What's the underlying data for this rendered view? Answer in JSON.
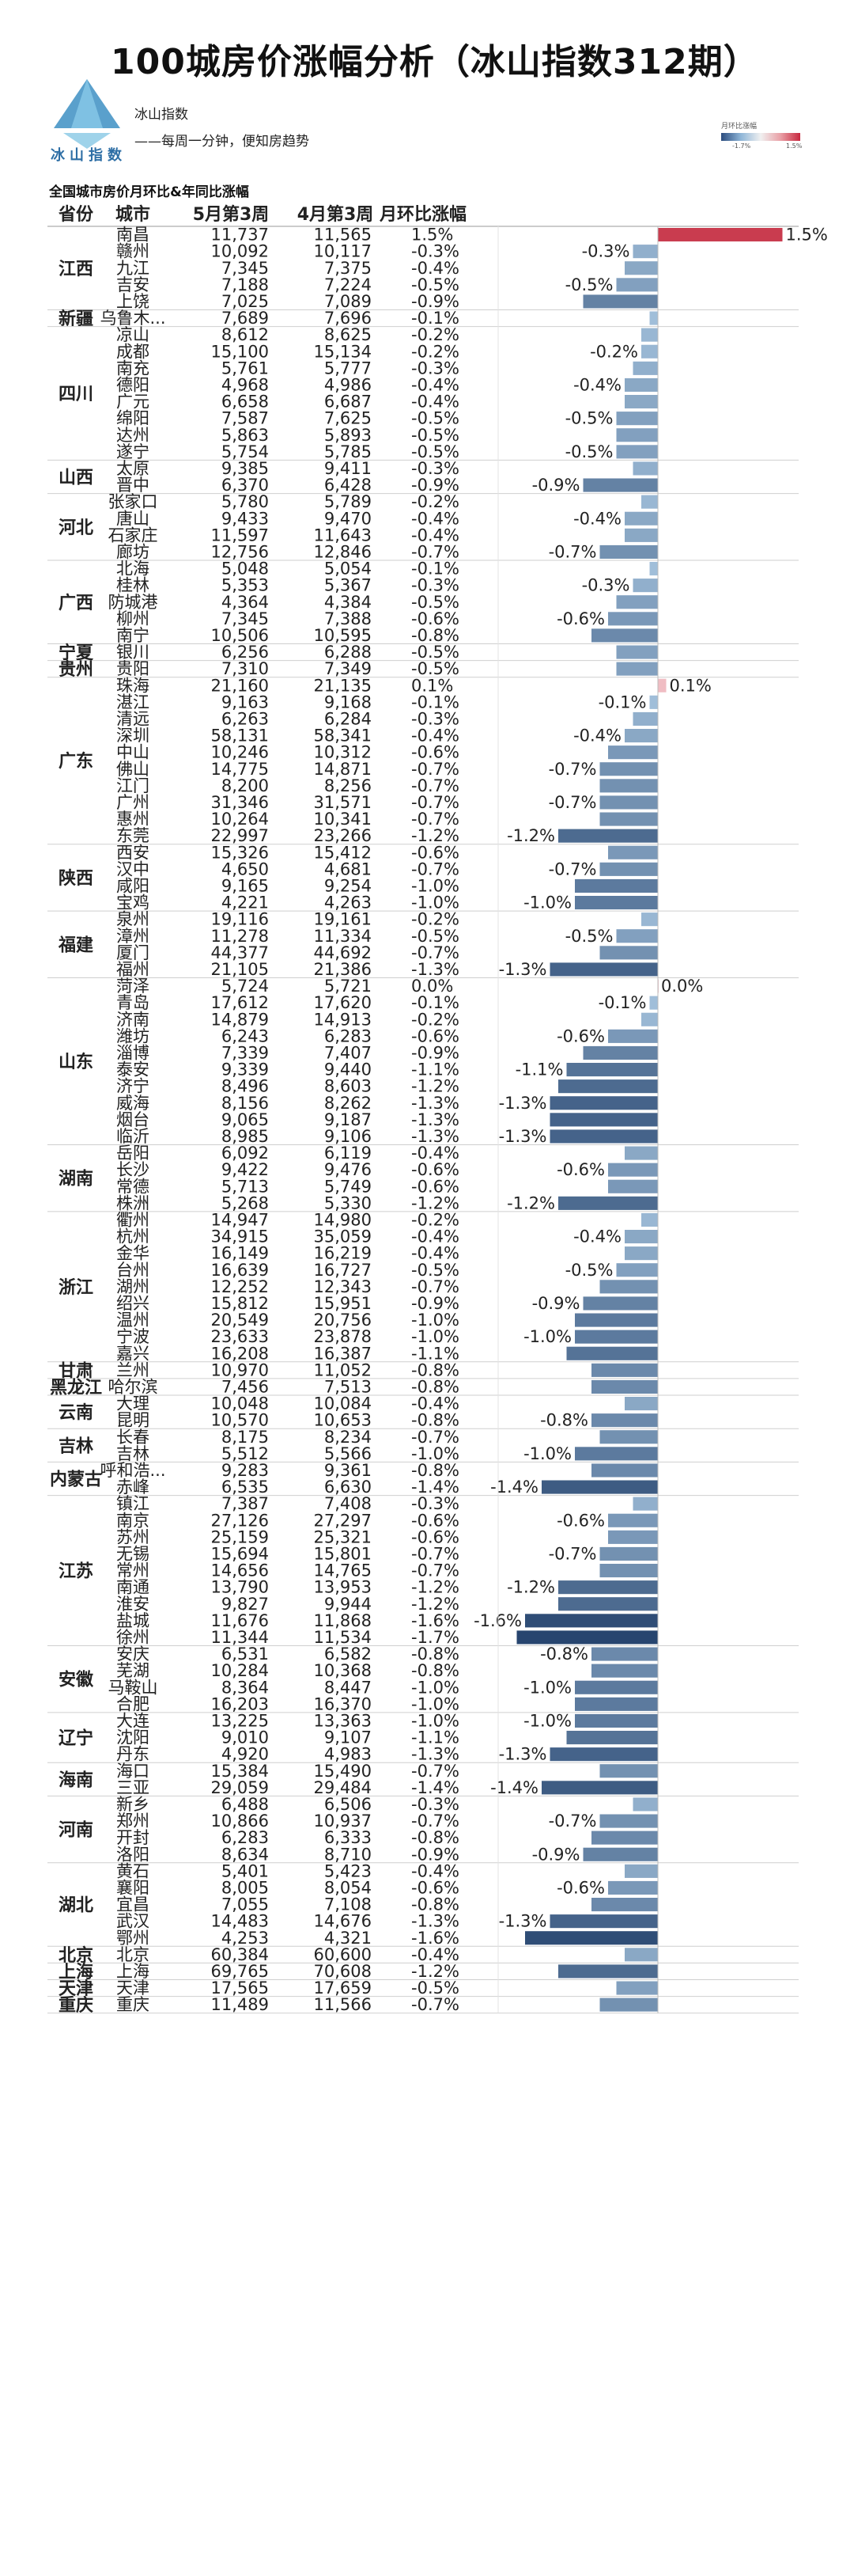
{
  "title": "100城房价涨幅分析（冰山指数312期）",
  "brand": "冰山指数",
  "subtitle_1": "冰山指数",
  "subtitle_2": "——每周一分钟，便知房趋势",
  "legend": {
    "title": "月环比涨幅",
    "min_label": "-1.7%",
    "max_label": "1.5%"
  },
  "colors": {
    "negative_light": "#a8c6e0",
    "negative_dark": "#27456f",
    "positive_light": "#f3c6cb",
    "positive_dark": "#c32a3e"
  },
  "chart_data": {
    "type": "table",
    "title": "全国城市房价月环比&年同比涨幅",
    "columns": [
      "省份",
      "城市",
      "5月第3周",
      "4月第3周",
      "月环比涨幅"
    ],
    "provinces": [
      {
        "name": "江西",
        "rows": [
          [
            "南昌",
            "11,737",
            "11,565",
            1.5,
            true
          ],
          [
            "赣州",
            "10,092",
            "10,117",
            -0.3,
            true
          ],
          [
            "九江",
            "7,345",
            "7,375",
            -0.4,
            false
          ],
          [
            "吉安",
            "7,188",
            "7,224",
            -0.5,
            true
          ],
          [
            "上饶",
            "7,025",
            "7,089",
            -0.9,
            false
          ]
        ]
      },
      {
        "name": "新疆",
        "rows": [
          [
            "乌鲁木...",
            "7,689",
            "7,696",
            -0.1,
            false
          ]
        ]
      },
      {
        "name": "四川",
        "rows": [
          [
            "凉山",
            "8,612",
            "8,625",
            -0.2,
            false
          ],
          [
            "成都",
            "15,100",
            "15,134",
            -0.2,
            true
          ],
          [
            "南充",
            "5,761",
            "5,777",
            -0.3,
            false
          ],
          [
            "德阳",
            "4,968",
            "4,986",
            -0.4,
            true
          ],
          [
            "广元",
            "6,658",
            "6,687",
            -0.4,
            false
          ],
          [
            "绵阳",
            "7,587",
            "7,625",
            -0.5,
            true
          ],
          [
            "达州",
            "5,863",
            "5,893",
            -0.5,
            false
          ],
          [
            "遂宁",
            "5,754",
            "5,785",
            -0.5,
            true
          ]
        ]
      },
      {
        "name": "山西",
        "rows": [
          [
            "太原",
            "9,385",
            "9,411",
            -0.3,
            false
          ],
          [
            "晋中",
            "6,370",
            "6,428",
            -0.9,
            true
          ]
        ]
      },
      {
        "name": "河北",
        "rows": [
          [
            "张家口",
            "5,780",
            "5,789",
            -0.2,
            false
          ],
          [
            "唐山",
            "9,433",
            "9,470",
            -0.4,
            true
          ],
          [
            "石家庄",
            "11,597",
            "11,643",
            -0.4,
            false
          ],
          [
            "廊坊",
            "12,756",
            "12,846",
            -0.7,
            true
          ]
        ]
      },
      {
        "name": "广西",
        "rows": [
          [
            "北海",
            "5,048",
            "5,054",
            -0.1,
            false
          ],
          [
            "桂林",
            "5,353",
            "5,367",
            -0.3,
            true
          ],
          [
            "防城港",
            "4,364",
            "4,384",
            -0.5,
            false
          ],
          [
            "柳州",
            "7,345",
            "7,388",
            -0.6,
            true
          ],
          [
            "南宁",
            "10,506",
            "10,595",
            -0.8,
            false
          ]
        ]
      },
      {
        "name": "宁夏",
        "rows": [
          [
            "银川",
            "6,256",
            "6,288",
            -0.5,
            false
          ]
        ]
      },
      {
        "name": "贵州",
        "rows": [
          [
            "贵阳",
            "7,310",
            "7,349",
            -0.5,
            false
          ]
        ]
      },
      {
        "name": "广东",
        "rows": [
          [
            "珠海",
            "21,160",
            "21,135",
            0.1,
            true
          ],
          [
            "湛江",
            "9,163",
            "9,168",
            -0.1,
            true
          ],
          [
            "清远",
            "6,263",
            "6,284",
            -0.3,
            false
          ],
          [
            "深圳",
            "58,131",
            "58,341",
            -0.4,
            true
          ],
          [
            "中山",
            "10,246",
            "10,312",
            -0.6,
            false
          ],
          [
            "佛山",
            "14,775",
            "14,871",
            -0.7,
            true
          ],
          [
            "江门",
            "8,200",
            "8,256",
            -0.7,
            false
          ],
          [
            "广州",
            "31,346",
            "31,571",
            -0.7,
            true
          ],
          [
            "惠州",
            "10,264",
            "10,341",
            -0.7,
            false
          ],
          [
            "东莞",
            "22,997",
            "23,266",
            -1.2,
            true
          ]
        ]
      },
      {
        "name": "陕西",
        "rows": [
          [
            "西安",
            "15,326",
            "15,412",
            -0.6,
            false
          ],
          [
            "汉中",
            "4,650",
            "4,681",
            -0.7,
            true
          ],
          [
            "咸阳",
            "9,165",
            "9,254",
            -1.0,
            false
          ],
          [
            "宝鸡",
            "4,221",
            "4,263",
            -1.0,
            true
          ]
        ]
      },
      {
        "name": "福建",
        "rows": [
          [
            "泉州",
            "19,116",
            "19,161",
            -0.2,
            false
          ],
          [
            "漳州",
            "11,278",
            "11,334",
            -0.5,
            true
          ],
          [
            "厦门",
            "44,377",
            "44,692",
            -0.7,
            false
          ],
          [
            "福州",
            "21,105",
            "21,386",
            -1.3,
            true
          ]
        ]
      },
      {
        "name": "山东",
        "rows": [
          [
            "菏泽",
            "5,724",
            "5,721",
            0.0,
            true
          ],
          [
            "青岛",
            "17,612",
            "17,620",
            -0.1,
            true
          ],
          [
            "济南",
            "14,879",
            "14,913",
            -0.2,
            false
          ],
          [
            "潍坊",
            "6,243",
            "6,283",
            -0.6,
            true
          ],
          [
            "淄博",
            "7,339",
            "7,407",
            -0.9,
            false
          ],
          [
            "泰安",
            "9,339",
            "9,440",
            -1.1,
            true
          ],
          [
            "济宁",
            "8,496",
            "8,603",
            -1.2,
            false
          ],
          [
            "威海",
            "8,156",
            "8,262",
            -1.3,
            true
          ],
          [
            "烟台",
            "9,065",
            "9,187",
            -1.3,
            false
          ],
          [
            "临沂",
            "8,985",
            "9,106",
            -1.3,
            true
          ]
        ]
      },
      {
        "name": "湖南",
        "rows": [
          [
            "岳阳",
            "6,092",
            "6,119",
            -0.4,
            false
          ],
          [
            "长沙",
            "9,422",
            "9,476",
            -0.6,
            true
          ],
          [
            "常德",
            "5,713",
            "5,749",
            -0.6,
            false
          ],
          [
            "株洲",
            "5,268",
            "5,330",
            -1.2,
            true
          ]
        ]
      },
      {
        "name": "浙江",
        "rows": [
          [
            "衢州",
            "14,947",
            "14,980",
            -0.2,
            false
          ],
          [
            "杭州",
            "34,915",
            "35,059",
            -0.4,
            true
          ],
          [
            "金华",
            "16,149",
            "16,219",
            -0.4,
            false
          ],
          [
            "台州",
            "16,639",
            "16,727",
            -0.5,
            true
          ],
          [
            "湖州",
            "12,252",
            "12,343",
            -0.7,
            false
          ],
          [
            "绍兴",
            "15,812",
            "15,951",
            -0.9,
            true
          ],
          [
            "温州",
            "20,549",
            "20,756",
            -1.0,
            false
          ],
          [
            "宁波",
            "23,633",
            "23,878",
            -1.0,
            true
          ],
          [
            "嘉兴",
            "16,208",
            "16,387",
            -1.1,
            false
          ]
        ]
      },
      {
        "name": "甘肃",
        "rows": [
          [
            "兰州",
            "10,970",
            "11,052",
            -0.8,
            false
          ]
        ]
      },
      {
        "name": "黑龙江",
        "rows": [
          [
            "哈尔滨",
            "7,456",
            "7,513",
            -0.8,
            false
          ]
        ]
      },
      {
        "name": "云南",
        "rows": [
          [
            "大理",
            "10,048",
            "10,084",
            -0.4,
            false
          ],
          [
            "昆明",
            "10,570",
            "10,653",
            -0.8,
            true
          ]
        ]
      },
      {
        "name": "吉林",
        "rows": [
          [
            "长春",
            "8,175",
            "8,234",
            -0.7,
            false
          ],
          [
            "吉林",
            "5,512",
            "5,566",
            -1.0,
            true
          ]
        ]
      },
      {
        "name": "内蒙古",
        "rows": [
          [
            "呼和浩...",
            "9,283",
            "9,361",
            -0.8,
            false
          ],
          [
            "赤峰",
            "6,535",
            "6,630",
            -1.4,
            true
          ]
        ]
      },
      {
        "name": "江苏",
        "rows": [
          [
            "镇江",
            "7,387",
            "7,408",
            -0.3,
            false
          ],
          [
            "南京",
            "27,126",
            "27,297",
            -0.6,
            true
          ],
          [
            "苏州",
            "25,159",
            "25,321",
            -0.6,
            false
          ],
          [
            "无锡",
            "15,694",
            "15,801",
            -0.7,
            true
          ],
          [
            "常州",
            "14,656",
            "14,765",
            -0.7,
            false
          ],
          [
            "南通",
            "13,790",
            "13,953",
            -1.2,
            true
          ],
          [
            "淮安",
            "9,827",
            "9,944",
            -1.2,
            false
          ],
          [
            "盐城",
            "11,676",
            "11,868",
            -1.6,
            true
          ],
          [
            "徐州",
            "11,344",
            "11,534",
            -1.7,
            false
          ]
        ]
      },
      {
        "name": "安徽",
        "rows": [
          [
            "安庆",
            "6,531",
            "6,582",
            -0.8,
            true
          ],
          [
            "芜湖",
            "10,284",
            "10,368",
            -0.8,
            false
          ],
          [
            "马鞍山",
            "8,364",
            "8,447",
            -1.0,
            true
          ],
          [
            "合肥",
            "16,203",
            "16,370",
            -1.0,
            false
          ]
        ]
      },
      {
        "name": "辽宁",
        "rows": [
          [
            "大连",
            "13,225",
            "13,363",
            -1.0,
            true
          ],
          [
            "沈阳",
            "9,010",
            "9,107",
            -1.1,
            false
          ],
          [
            "丹东",
            "4,920",
            "4,983",
            -1.3,
            true
          ]
        ]
      },
      {
        "name": "海南",
        "rows": [
          [
            "海口",
            "15,384",
            "15,490",
            -0.7,
            false
          ],
          [
            "三亚",
            "29,059",
            "29,484",
            -1.4,
            true
          ]
        ]
      },
      {
        "name": "河南",
        "rows": [
          [
            "新乡",
            "6,488",
            "6,506",
            -0.3,
            false
          ],
          [
            "郑州",
            "10,866",
            "10,937",
            -0.7,
            true
          ],
          [
            "开封",
            "6,283",
            "6,333",
            -0.8,
            false
          ],
          [
            "洛阳",
            "8,634",
            "8,710",
            -0.9,
            true
          ]
        ]
      },
      {
        "name": "湖北",
        "rows": [
          [
            "黄石",
            "5,401",
            "5,423",
            -0.4,
            false
          ],
          [
            "襄阳",
            "8,005",
            "8,054",
            -0.6,
            true
          ],
          [
            "宜昌",
            "7,055",
            "7,108",
            -0.8,
            false
          ],
          [
            "武汉",
            "14,483",
            "14,676",
            -1.3,
            true
          ],
          [
            "鄂州",
            "4,253",
            "4,321",
            -1.6,
            false
          ]
        ]
      },
      {
        "name": "北京",
        "rows": [
          [
            "北京",
            "60,384",
            "60,600",
            -0.4,
            false
          ]
        ]
      },
      {
        "name": "上海",
        "rows": [
          [
            "上海",
            "69,765",
            "70,608",
            -1.2,
            false
          ]
        ]
      },
      {
        "name": "天津",
        "rows": [
          [
            "天津",
            "17,565",
            "17,659",
            -0.5,
            false
          ]
        ]
      },
      {
        "name": "重庆",
        "rows": [
          [
            "重庆",
            "11,489",
            "11,566",
            -0.7,
            false
          ]
        ]
      }
    ]
  }
}
